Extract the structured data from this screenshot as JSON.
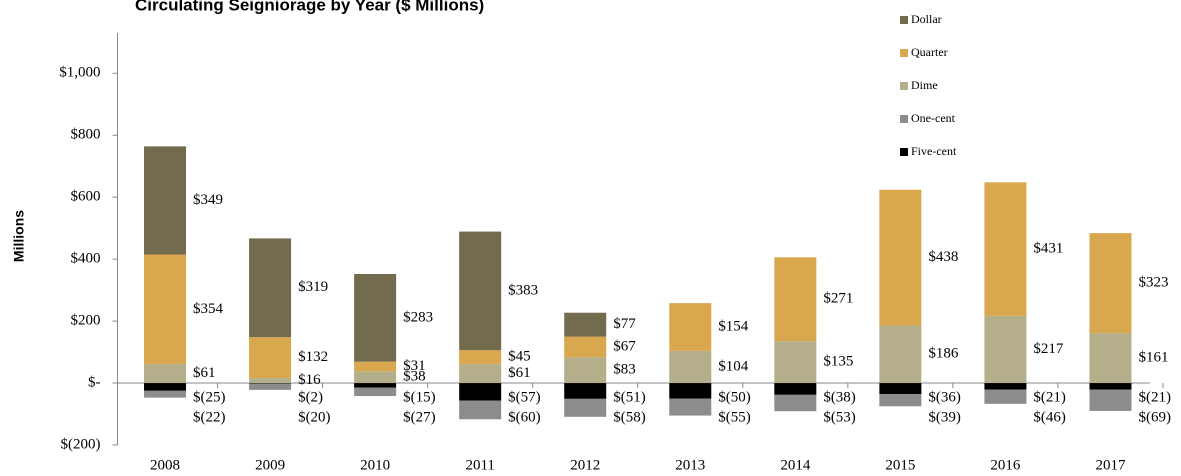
{
  "chart_data": {
    "type": "stacked-bar",
    "title": "Circulating Seigniorage by Year ($ Millions)",
    "ylabel": "Millions",
    "categories": [
      "2008",
      "2009",
      "2010",
      "2011",
      "2012",
      "2013",
      "2014",
      "2015",
      "2016",
      "2017"
    ],
    "series": [
      {
        "name": "Dollar",
        "color": "#736b4d",
        "values": [
          349,
          319,
          283,
          383,
          77,
          null,
          null,
          null,
          null,
          null
        ],
        "value_labels": [
          "$349",
          "$319",
          "$283",
          "$383",
          "$77",
          null,
          null,
          null,
          null,
          null
        ]
      },
      {
        "name": "Quarter",
        "color": "#d9a84e",
        "values": [
          354,
          132,
          31,
          45,
          67,
          154,
          271,
          438,
          431,
          323
        ],
        "value_labels": [
          "$354",
          "$132",
          "$31",
          "$45",
          "$67",
          "$154",
          "$271",
          "$438",
          "$431",
          "$323"
        ]
      },
      {
        "name": "Dime",
        "color": "#b5ae8a",
        "values": [
          61,
          16,
          38,
          61,
          83,
          104,
          135,
          186,
          217,
          161
        ],
        "value_labels": [
          "$61",
          "$16",
          "$38",
          "$61",
          "$83",
          "$104",
          "$135",
          "$186",
          "$217",
          "$161"
        ]
      },
      {
        "name": "One-cent",
        "color": "#8c8c8c",
        "values": [
          -22,
          -20,
          -27,
          -60,
          -58,
          -55,
          -53,
          -39,
          -46,
          -69
        ],
        "value_labels": [
          "$(22)",
          "$(20)",
          "$(27)",
          "$(60)",
          "$(58)",
          "$(55)",
          "$(53)",
          "$(39)",
          "$(46)",
          "$(69)"
        ]
      },
      {
        "name": "Five-cent",
        "color": "#000000",
        "values": [
          -25,
          -2,
          -15,
          -57,
          -51,
          -50,
          -38,
          -36,
          -21,
          -21
        ],
        "value_labels": [
          "$(25)",
          "$(2)",
          "$(15)",
          "$(57)",
          "$(51)",
          "$(50)",
          "$(38)",
          "$(36)",
          "$(21)",
          "$(21)"
        ]
      }
    ],
    "ylim": [
      -200,
      1130
    ],
    "yticks": [
      {
        "value": -200,
        "label": "$(200)"
      },
      {
        "value": 0,
        "label": "$-"
      },
      {
        "value": 200,
        "label": "$200"
      },
      {
        "value": 400,
        "label": "$400"
      },
      {
        "value": 600,
        "label": "$600"
      },
      {
        "value": 800,
        "label": "$800"
      },
      {
        "value": 1000,
        "label": "$1,000"
      }
    ],
    "legend": "top-right"
  }
}
